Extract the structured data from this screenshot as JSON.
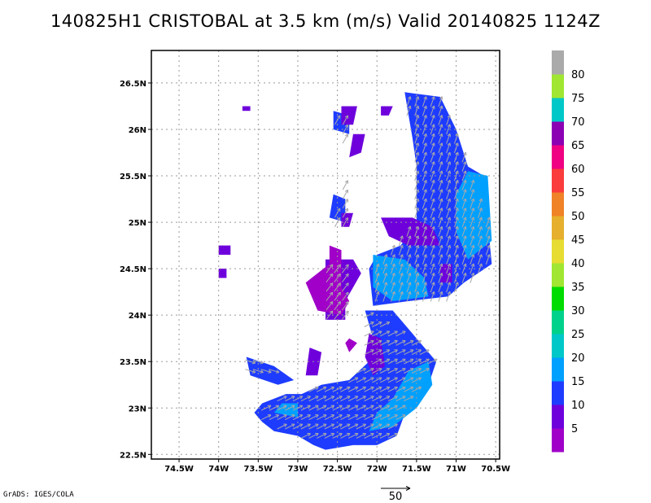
{
  "title": "140825H1 CRISTOBAL at 3.5 km (m/s) Valid 20140825 1124Z",
  "credit": "GrADS: IGES/COLA",
  "vector_ref_label": "50",
  "chart_data": {
    "type": "heatmap",
    "title": "140825H1 CRISTOBAL at 3.5 km (m/s) Valid 20140825 1124Z",
    "xlabel": "",
    "ylabel": "",
    "xlim": [
      -74.85,
      -70.45
    ],
    "ylim": [
      22.45,
      26.85
    ],
    "x_ticks": [
      -74.5,
      -74,
      -73.5,
      -73,
      -72.5,
      -72,
      -71.5,
      -71,
      -70.5
    ],
    "x_tick_labels": [
      "74.5W",
      "74W",
      "73.5W",
      "73W",
      "72.5W",
      "72W",
      "71.5W",
      "71W",
      "70.5W"
    ],
    "y_ticks": [
      22.5,
      23,
      23.5,
      24,
      24.5,
      25,
      25.5,
      26,
      26.5
    ],
    "y_tick_labels": [
      "22.5N",
      "23N",
      "23.5N",
      "24N",
      "24.5N",
      "25N",
      "25.5N",
      "26N",
      "26.5N"
    ],
    "grid": true,
    "colorbar": {
      "labels": [
        "5",
        "10",
        "15",
        "20",
        "25",
        "30",
        "35",
        "40",
        "45",
        "50",
        "55",
        "60",
        "65",
        "70",
        "75",
        "80"
      ],
      "colors": [
        "#a000c8",
        "#6e00dc",
        "#1e3cff",
        "#00a0ff",
        "#00c8c8",
        "#00d28c",
        "#00dc00",
        "#a0e632",
        "#e6dc32",
        "#e6af2d",
        "#f08228",
        "#fa3c3c",
        "#f00082",
        "#8c00b4",
        "#00c8c8",
        "#a0e632",
        "#aaaaaa"
      ]
    },
    "wind_regions": [
      {
        "class": 15,
        "poly": [
          [
            -71.65,
            26.4
          ],
          [
            -71.2,
            26.35
          ],
          [
            -71.0,
            26.0
          ],
          [
            -70.85,
            25.6
          ],
          [
            -70.65,
            25.5
          ],
          [
            -70.6,
            25.0
          ],
          [
            -70.55,
            24.55
          ],
          [
            -70.9,
            24.35
          ],
          [
            -71.1,
            24.2
          ],
          [
            -71.6,
            24.15
          ],
          [
            -72.05,
            24.1
          ],
          [
            -72.1,
            24.5
          ],
          [
            -72.0,
            24.65
          ],
          [
            -71.7,
            24.75
          ],
          [
            -71.5,
            25.0
          ],
          [
            -71.5,
            25.25
          ],
          [
            -71.5,
            25.6
          ],
          [
            -71.55,
            25.9
          ],
          [
            -71.6,
            26.15
          ]
        ]
      },
      {
        "class": 15,
        "poly": [
          [
            -72.15,
            24.05
          ],
          [
            -71.8,
            24.05
          ],
          [
            -71.6,
            23.85
          ],
          [
            -71.4,
            23.65
          ],
          [
            -71.25,
            23.5
          ],
          [
            -71.35,
            23.25
          ],
          [
            -71.6,
            23.05
          ],
          [
            -71.75,
            22.7
          ],
          [
            -72.0,
            22.6
          ],
          [
            -72.3,
            22.6
          ],
          [
            -72.65,
            22.55
          ],
          [
            -72.8,
            22.6
          ],
          [
            -73.0,
            22.7
          ],
          [
            -73.3,
            22.75
          ],
          [
            -73.45,
            22.85
          ],
          [
            -73.55,
            22.95
          ],
          [
            -73.45,
            23.05
          ],
          [
            -73.15,
            23.15
          ],
          [
            -72.95,
            23.15
          ],
          [
            -72.7,
            23.25
          ],
          [
            -72.35,
            23.3
          ],
          [
            -72.1,
            23.5
          ],
          [
            -72.05,
            23.75
          ]
        ]
      },
      {
        "class": 15,
        "poly": [
          [
            -73.65,
            23.55
          ],
          [
            -73.3,
            23.45
          ],
          [
            -73.05,
            23.3
          ],
          [
            -73.25,
            23.25
          ],
          [
            -73.6,
            23.35
          ]
        ]
      },
      {
        "class": 15,
        "poly": [
          [
            -72.55,
            25.3
          ],
          [
            -72.4,
            25.25
          ],
          [
            -72.4,
            25.0
          ],
          [
            -72.6,
            25.05
          ]
        ]
      },
      {
        "class": 15,
        "poly": [
          [
            -72.55,
            26.2
          ],
          [
            -72.35,
            26.15
          ],
          [
            -72.35,
            25.95
          ],
          [
            -72.55,
            26.0
          ]
        ]
      },
      {
        "class": 20,
        "poly": [
          [
            -70.85,
            25.55
          ],
          [
            -70.6,
            25.5
          ],
          [
            -70.55,
            24.8
          ],
          [
            -70.85,
            24.6
          ],
          [
            -71.0,
            24.9
          ],
          [
            -71.0,
            25.3
          ]
        ]
      },
      {
        "class": 20,
        "poly": [
          [
            -72.05,
            24.65
          ],
          [
            -71.65,
            24.6
          ],
          [
            -71.4,
            24.4
          ],
          [
            -71.35,
            24.2
          ],
          [
            -71.8,
            24.15
          ],
          [
            -72.05,
            24.3
          ]
        ]
      },
      {
        "class": 20,
        "poly": [
          [
            -72.1,
            22.75
          ],
          [
            -71.8,
            22.8
          ],
          [
            -71.5,
            23.0
          ],
          [
            -71.3,
            23.25
          ],
          [
            -71.35,
            23.5
          ],
          [
            -71.6,
            23.4
          ],
          [
            -71.8,
            23.1
          ],
          [
            -72.0,
            22.95
          ]
        ]
      },
      {
        "class": 20,
        "poly": [
          [
            -73.3,
            22.95
          ],
          [
            -73.0,
            22.9
          ],
          [
            -73.0,
            23.05
          ],
          [
            -73.2,
            23.05
          ]
        ]
      },
      {
        "class": 10,
        "poly": [
          [
            -71.95,
            25.05
          ],
          [
            -71.55,
            25.05
          ],
          [
            -71.3,
            24.95
          ],
          [
            -71.2,
            24.75
          ],
          [
            -71.6,
            24.75
          ],
          [
            -71.85,
            24.85
          ]
        ]
      },
      {
        "class": 10,
        "poly": [
          [
            -72.65,
            24.6
          ],
          [
            -72.3,
            24.6
          ],
          [
            -72.2,
            24.45
          ],
          [
            -72.4,
            24.15
          ],
          [
            -72.4,
            23.95
          ],
          [
            -72.65,
            23.95
          ],
          [
            -72.65,
            24.3
          ]
        ]
      },
      {
        "class": 10,
        "poly": [
          [
            -72.1,
            23.8
          ],
          [
            -71.95,
            23.75
          ],
          [
            -71.9,
            23.45
          ],
          [
            -72.05,
            23.35
          ],
          [
            -72.15,
            23.55
          ]
        ]
      },
      {
        "class": 10,
        "poly": [
          [
            -72.85,
            23.65
          ],
          [
            -72.7,
            23.6
          ],
          [
            -72.75,
            23.35
          ],
          [
            -72.9,
            23.35
          ]
        ]
      },
      {
        "class": 10,
        "poly": [
          [
            -72.45,
            26.25
          ],
          [
            -72.25,
            26.25
          ],
          [
            -72.3,
            26.05
          ],
          [
            -72.45,
            26.05
          ]
        ]
      },
      {
        "class": 10,
        "poly": [
          [
            -71.95,
            26.25
          ],
          [
            -71.8,
            26.25
          ],
          [
            -71.85,
            26.15
          ],
          [
            -71.95,
            26.15
          ]
        ]
      },
      {
        "class": 10,
        "poly": [
          [
            -72.3,
            25.95
          ],
          [
            -72.15,
            25.95
          ],
          [
            -72.2,
            25.75
          ],
          [
            -72.35,
            25.7
          ]
        ]
      },
      {
        "class": 10,
        "poly": [
          [
            -72.45,
            25.1
          ],
          [
            -72.3,
            25.1
          ],
          [
            -72.35,
            24.95
          ],
          [
            -72.45,
            24.95
          ]
        ]
      },
      {
        "class": 10,
        "poly": [
          [
            -73.7,
            26.25
          ],
          [
            -73.6,
            26.25
          ],
          [
            -73.6,
            26.2
          ],
          [
            -73.7,
            26.2
          ]
        ]
      },
      {
        "class": 10,
        "poly": [
          [
            -74.0,
            24.75
          ],
          [
            -73.85,
            24.75
          ],
          [
            -73.85,
            24.65
          ],
          [
            -74.0,
            24.65
          ]
        ]
      },
      {
        "class": 10,
        "poly": [
          [
            -74.0,
            24.5
          ],
          [
            -73.9,
            24.5
          ],
          [
            -73.9,
            24.4
          ],
          [
            -74.0,
            24.4
          ]
        ]
      },
      {
        "class": 10,
        "poly": [
          [
            -71.2,
            24.55
          ],
          [
            -71.05,
            24.55
          ],
          [
            -71.05,
            24.35
          ],
          [
            -71.2,
            24.35
          ]
        ]
      },
      {
        "class": 5,
        "poly": [
          [
            -72.6,
            24.75
          ],
          [
            -72.45,
            24.7
          ],
          [
            -72.45,
            24.3
          ],
          [
            -72.35,
            24.15
          ],
          [
            -72.45,
            24.0
          ],
          [
            -72.75,
            24.05
          ],
          [
            -72.9,
            24.35
          ],
          [
            -72.75,
            24.45
          ],
          [
            -72.6,
            24.55
          ]
        ]
      },
      {
        "class": 5,
        "poly": [
          [
            -72.35,
            23.75
          ],
          [
            -72.25,
            23.7
          ],
          [
            -72.35,
            23.6
          ],
          [
            -72.4,
            23.7
          ]
        ]
      }
    ],
    "vector_regions": [
      {
        "poly": [
          [
            -71.65,
            26.4
          ],
          [
            -71.2,
            26.35
          ],
          [
            -70.85,
            25.6
          ],
          [
            -70.6,
            25.0
          ],
          [
            -70.55,
            24.55
          ],
          [
            -71.1,
            24.2
          ],
          [
            -72.05,
            24.1
          ],
          [
            -72.1,
            24.5
          ],
          [
            -71.5,
            25.0
          ],
          [
            -71.55,
            25.9
          ]
        ],
        "u": 0.35,
        "v": 1.0
      },
      {
        "poly": [
          [
            -72.15,
            24.05
          ],
          [
            -71.4,
            23.65
          ],
          [
            -71.25,
            23.5
          ],
          [
            -71.6,
            23.05
          ],
          [
            -71.75,
            22.7
          ],
          [
            -72.3,
            22.6
          ],
          [
            -73.0,
            22.7
          ],
          [
            -73.55,
            22.95
          ],
          [
            -73.15,
            23.15
          ],
          [
            -72.35,
            23.3
          ],
          [
            -72.1,
            23.5
          ]
        ],
        "u": 1.0,
        "v": 0.5
      },
      {
        "poly": [
          [
            -72.65,
            24.6
          ],
          [
            -72.3,
            24.6
          ],
          [
            -72.4,
            23.95
          ],
          [
            -72.65,
            23.95
          ]
        ],
        "u": 0.6,
        "v": 0.8
      },
      {
        "poly": [
          [
            -73.65,
            23.55
          ],
          [
            -73.3,
            23.45
          ],
          [
            -73.05,
            23.3
          ],
          [
            -73.6,
            23.35
          ]
        ],
        "u": 1.0,
        "v": -0.3
      },
      {
        "poly": [
          [
            -72.55,
            26.2
          ],
          [
            -72.35,
            26.15
          ],
          [
            -72.3,
            25.75
          ],
          [
            -72.55,
            25.0
          ],
          [
            -72.4,
            25.0
          ],
          [
            -72.35,
            25.7
          ]
        ],
        "u": 0.5,
        "v": 0.9
      }
    ]
  }
}
